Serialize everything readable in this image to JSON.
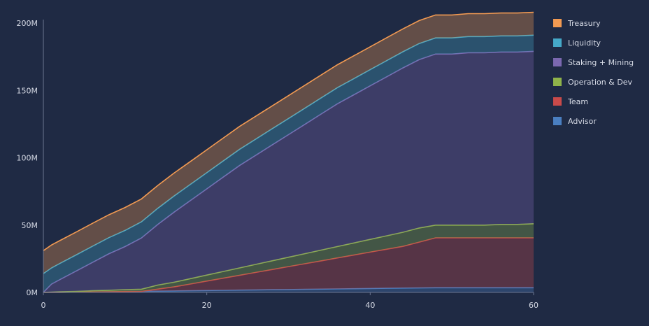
{
  "chart_data": {
    "type": "area",
    "stacked": true,
    "x": [
      0,
      1,
      2,
      4,
      6,
      8,
      10,
      12,
      14,
      16,
      18,
      20,
      22,
      24,
      26,
      28,
      30,
      32,
      34,
      36,
      38,
      40,
      42,
      44,
      46,
      48,
      50,
      52,
      54,
      56,
      58,
      60
    ],
    "series": [
      {
        "name": "Advisor",
        "color": "#4a7fc1",
        "values": [
          0,
          0,
          0.05,
          0.2,
          0.35,
          0.5,
          0.65,
          0.8,
          0.95,
          1.1,
          1.25,
          1.4,
          1.55,
          1.7,
          1.85,
          2.0,
          2.15,
          2.3,
          2.45,
          2.6,
          2.75,
          2.9,
          3.05,
          3.2,
          3.35,
          3.5,
          3.5,
          3.5,
          3.5,
          3.5,
          3.5,
          3.5
        ]
      },
      {
        "name": "Team",
        "color": "#c94a4a",
        "values": [
          0,
          0,
          0,
          0,
          0,
          0,
          0,
          0,
          1.5,
          3.0,
          5.0,
          7.0,
          9.0,
          11.0,
          13.0,
          15.0,
          17.0,
          19.0,
          21.0,
          23.0,
          25.0,
          27.0,
          29.0,
          31.0,
          34.0,
          37.0,
          37.0,
          37.0,
          37.0,
          37.0,
          37.0,
          37.0
        ]
      },
      {
        "name": "Operation & Dev",
        "color": "#8fb34a",
        "values": [
          0,
          0.2,
          0.4,
          0.6,
          0.9,
          1.1,
          1.4,
          1.6,
          3.0,
          3.5,
          4.0,
          4.5,
          5.0,
          5.5,
          6.0,
          6.5,
          7.0,
          7.5,
          8.0,
          8.5,
          9.0,
          9.5,
          10.0,
          10.5,
          10.5,
          9.5,
          9.5,
          9.5,
          9.5,
          10.0,
          10.0,
          10.5
        ]
      },
      {
        "name": "Staking + Mining",
        "color": "#7b68b0",
        "values": [
          0,
          6,
          9,
          15,
          21,
          27,
          32,
          38,
          45,
          52,
          58,
          64,
          70,
          76,
          81,
          86,
          91,
          96,
          101,
          106,
          110,
          114,
          118,
          122,
          125,
          127,
          127,
          128,
          128,
          128,
          128,
          128
        ]
      },
      {
        "name": "Liquidity",
        "color": "#45a8c8",
        "values": [
          14,
          12,
          12,
          12,
          12,
          12,
          12,
          12,
          12,
          12,
          12,
          12,
          12,
          12,
          12,
          12,
          12,
          12,
          12,
          12,
          12,
          12,
          12,
          12,
          12,
          12,
          12,
          12,
          12,
          12,
          12,
          12
        ]
      },
      {
        "name": "Treasury",
        "color": "#f29a52",
        "values": [
          17,
          17,
          17,
          17,
          17,
          17,
          17,
          17,
          17,
          17,
          17,
          17,
          17,
          17,
          17,
          17,
          17,
          17,
          17,
          17,
          17,
          17,
          17,
          17,
          17,
          17,
          17,
          17,
          17,
          17,
          17,
          17
        ]
      }
    ],
    "xlim": [
      0,
      60
    ],
    "ylim": [
      0,
      200
    ],
    "x_ticks": [
      "0",
      "20",
      "40",
      "60"
    ],
    "y_ticks": [
      "0M",
      "50M",
      "100M",
      "150M",
      "200M"
    ],
    "legend_order": [
      "Treasury",
      "Liquidity",
      "Staking + Mining",
      "Operation & Dev",
      "Team",
      "Advisor"
    ],
    "grid": false,
    "legend_position": "right",
    "background": "#1f2a44",
    "axis_color": "#6b7590"
  }
}
